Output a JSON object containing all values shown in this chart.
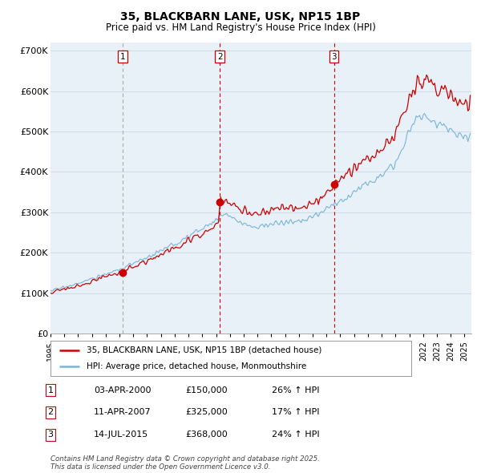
{
  "title": "35, BLACKBARN LANE, USK, NP15 1BP",
  "subtitle": "Price paid vs. HM Land Registry's House Price Index (HPI)",
  "ylabel_ticks": [
    "£0",
    "£100K",
    "£200K",
    "£300K",
    "£400K",
    "£500K",
    "£600K",
    "£700K"
  ],
  "ytick_values": [
    0,
    100000,
    200000,
    300000,
    400000,
    500000,
    600000,
    700000
  ],
  "ylim": [
    0,
    720000
  ],
  "xlim_start": 1995.0,
  "xlim_end": 2025.5,
  "purchase_dates": [
    2000.25,
    2007.28,
    2015.54
  ],
  "purchase_prices": [
    150000,
    325000,
    368000
  ],
  "purchase_labels": [
    "1",
    "2",
    "3"
  ],
  "hpi_line_color": "#7ab4d8",
  "price_line_color": "#cc0000",
  "marker_color": "#cc0000",
  "grid_color": "#c8d8e8",
  "bg_color": "#ffffff",
  "chart_bg_color": "#e8f0f8",
  "legend_entries": [
    "35, BLACKBARN LANE, USK, NP15 1BP (detached house)",
    "HPI: Average price, detached house, Monmouthshire"
  ],
  "table_data": [
    [
      "1",
      "03-APR-2000",
      "£150,000",
      "26% ↑ HPI"
    ],
    [
      "2",
      "11-APR-2007",
      "£325,000",
      "17% ↑ HPI"
    ],
    [
      "3",
      "14-JUL-2015",
      "£368,000",
      "24% ↑ HPI"
    ]
  ],
  "footnote": "Contains HM Land Registry data © Crown copyright and database right 2025.\nThis data is licensed under the Open Government Licence v3.0.",
  "vline_color_1": "#aaaaaa",
  "vline_color_23": "#dd0000",
  "seed": 17
}
